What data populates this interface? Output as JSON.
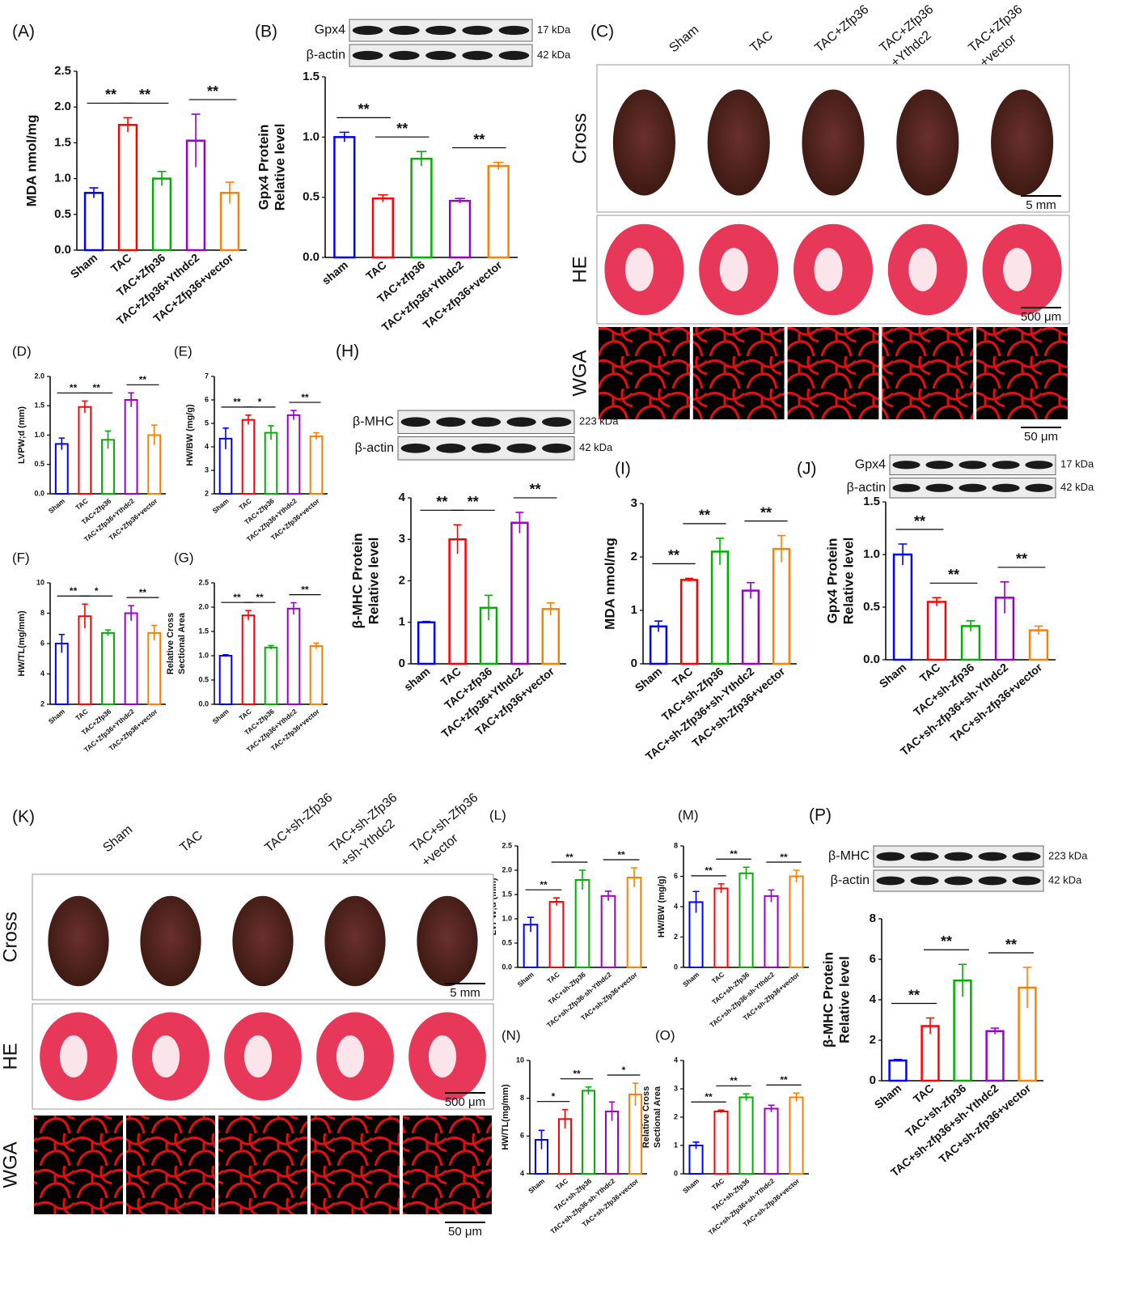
{
  "chart_data": [
    {
      "type": "bar",
      "label": "(A)",
      "ylabel": [
        "MDA nmol/mg"
      ],
      "categories": [
        "Sham",
        "TAC",
        "TAC+Zfp36",
        "TAC+Zfp36+Ythdc2",
        "TAC+Zfp36+vector"
      ],
      "colors": [
        "#0000ff",
        "#ff0000",
        "#00b000",
        "#9900cc",
        "#ff8000"
      ],
      "values": [
        0.8,
        1.75,
        1.0,
        1.53,
        0.8
      ],
      "errors": [
        0.07,
        0.1,
        0.1,
        0.37,
        0.15
      ],
      "ylim": [
        0,
        2.5
      ],
      "yticks": [
        {
          "value": 0,
          "label": "0.0"
        },
        0.5,
        {
          "value": 1,
          "label": "1.0"
        },
        1.5,
        {
          "value": 2,
          "label": "2.0"
        },
        2.5
      ],
      "significance": [
        {
          "pair": [
            0,
            1
          ],
          "text": "**"
        },
        {
          "pair": [
            1,
            2
          ],
          "text": "**"
        },
        {
          "pair": [
            3,
            4
          ],
          "text": "**"
        }
      ]
    },
    {
      "type": "bar",
      "label": "(B)",
      "ylabel": [
        "Gpx4 Protein",
        "Relative level"
      ],
      "categories": [
        "sham",
        "TAC",
        "TAC+zfp36",
        "TAC+zfp36+Ythdc2",
        "TAC+zfp36+vector"
      ],
      "colors": [
        "#0000ff",
        "#ff0000",
        "#00b000",
        "#9900cc",
        "#ff8000"
      ],
      "values": [
        1.0,
        0.49,
        0.82,
        0.47,
        0.76
      ],
      "errors": [
        0.04,
        0.03,
        0.06,
        0.02,
        0.03
      ],
      "ylim": [
        0,
        1.5
      ],
      "yticks": [
        {
          "value": 0,
          "label": "0.0"
        },
        0.5,
        {
          "value": 1,
          "label": "1.0"
        },
        1.5
      ],
      "significance": [
        {
          "pair": [
            0,
            1
          ],
          "text": "**"
        },
        {
          "pair": [
            1,
            2
          ],
          "text": "**"
        },
        {
          "pair": [
            3,
            4
          ],
          "text": "**"
        }
      ],
      "blot": [
        {
          "name": "Gpx4",
          "size": "17 kDa"
        },
        {
          "name": "β-actin",
          "size": "42 kDa"
        }
      ]
    },
    {
      "type": "bar",
      "label": "(D)",
      "ylabel": [
        "LVPW;d (mm)"
      ],
      "categories": [
        "Sham",
        "TAC",
        "TAC+Zfp36",
        "TAC+Zfp36+Ythdc2",
        "TAC+Zfp36+vector"
      ],
      "colors": [
        "#0000ff",
        "#ff0000",
        "#00b000",
        "#9900cc",
        "#ff8000"
      ],
      "values": [
        0.85,
        1.48,
        0.92,
        1.6,
        1.0
      ],
      "errors": [
        0.1,
        0.1,
        0.15,
        0.12,
        0.17
      ],
      "ylim": [
        0,
        2
      ],
      "yticks": [
        {
          "value": 0,
          "label": "0.0"
        },
        0.5,
        {
          "value": 1,
          "label": "1.0"
        },
        1.5,
        {
          "value": 2,
          "label": "2.0"
        }
      ],
      "significance": [
        {
          "pair": [
            0,
            1
          ],
          "text": "**"
        },
        {
          "pair": [
            1,
            2
          ],
          "text": "**"
        },
        {
          "pair": [
            3,
            4
          ],
          "text": "**"
        }
      ]
    },
    {
      "type": "bar",
      "label": "(E)",
      "ylabel": [
        "HW/BW (mg/g)"
      ],
      "categories": [
        "Sham",
        "TAC",
        "TAC+Zfp36",
        "TAC+Zfp36+Ythdc2",
        "TAC+Zfp36+vector"
      ],
      "colors": [
        "#0000ff",
        "#ff0000",
        "#00b000",
        "#9900cc",
        "#ff8000"
      ],
      "values": [
        4.35,
        5.15,
        4.6,
        5.35,
        4.45
      ],
      "errors": [
        0.45,
        0.2,
        0.3,
        0.2,
        0.15
      ],
      "ylim": [
        2,
        7
      ],
      "yticks": [
        2,
        3,
        4,
        5,
        6,
        7
      ],
      "significance": [
        {
          "pair": [
            0,
            1
          ],
          "text": "**"
        },
        {
          "pair": [
            1,
            2
          ],
          "text": "*"
        },
        {
          "pair": [
            3,
            4
          ],
          "text": "**"
        }
      ]
    },
    {
      "type": "bar",
      "label": "(F)",
      "ylabel": [
        "HW/TL(mg/mm)"
      ],
      "categories": [
        "Sham",
        "TAC",
        "TAC+Zfp36",
        "TAC+Zfp36+Ythdc2",
        "TAC+Zfp36+vector"
      ],
      "colors": [
        "#0000ff",
        "#ff0000",
        "#00b000",
        "#9900cc",
        "#ff8000"
      ],
      "values": [
        6.0,
        7.8,
        6.7,
        8.0,
        6.7
      ],
      "errors": [
        0.6,
        0.8,
        0.2,
        0.5,
        0.5
      ],
      "ylim": [
        2,
        10
      ],
      "yticks": [
        2,
        4,
        6,
        8,
        10
      ],
      "significance": [
        {
          "pair": [
            0,
            1
          ],
          "text": "**"
        },
        {
          "pair": [
            1,
            2
          ],
          "text": "*"
        },
        {
          "pair": [
            3,
            4
          ],
          "text": "**"
        }
      ]
    },
    {
      "type": "bar",
      "label": "(G)",
      "ylabel": [
        "Relative Cross",
        "Sectional Area"
      ],
      "categories": [
        "Sham",
        "TAC",
        "TAC+Zfp36",
        "TAC+Zfp36+Ythdc2",
        "TAC+Zfp36+vector"
      ],
      "colors": [
        "#0000ff",
        "#ff0000",
        "#00b000",
        "#9900cc",
        "#ff8000"
      ],
      "values": [
        1.0,
        1.83,
        1.17,
        1.97,
        1.2
      ],
      "errors": [
        0.02,
        0.1,
        0.04,
        0.12,
        0.06
      ],
      "ylim": [
        0,
        2.5
      ],
      "yticks": [
        {
          "value": 0,
          "label": "0.0"
        },
        0.5,
        {
          "value": 1,
          "label": "1.0"
        },
        1.5,
        {
          "value": 2,
          "label": "2.0"
        },
        2.5
      ],
      "significance": [
        {
          "pair": [
            0,
            1
          ],
          "text": "**"
        },
        {
          "pair": [
            1,
            2
          ],
          "text": "**"
        },
        {
          "pair": [
            3,
            4
          ],
          "text": "**"
        }
      ]
    },
    {
      "type": "bar",
      "label": "(H)",
      "ylabel": [
        "β-MHC Protein",
        "Relative level"
      ],
      "categories": [
        "sham",
        "TAC",
        "TAC+zfp36",
        "TAC+zfp36+Ythdc2",
        "TAC+zfp36+vector"
      ],
      "colors": [
        "#0000ff",
        "#ff0000",
        "#00b000",
        "#9900cc",
        "#ff8000"
      ],
      "values": [
        1.0,
        3.0,
        1.35,
        3.4,
        1.32
      ],
      "errors": [
        0.02,
        0.35,
        0.3,
        0.25,
        0.15
      ],
      "ylim": [
        0,
        4
      ],
      "yticks": [
        0,
        1,
        2,
        3,
        4
      ],
      "significance": [
        {
          "pair": [
            0,
            1
          ],
          "text": "**"
        },
        {
          "pair": [
            1,
            2
          ],
          "text": "**"
        },
        {
          "pair": [
            3,
            4
          ],
          "text": "**"
        }
      ],
      "blot": [
        {
          "name": "β-MHC",
          "size": "223 kDa"
        },
        {
          "name": "β-actin",
          "size": "42 kDa"
        }
      ]
    },
    {
      "type": "bar",
      "label": "(I)",
      "ylabel": [
        "MDA nmol/mg"
      ],
      "categories": [
        "Sham",
        "TAC",
        "TAC+sh-Zfp36",
        "TAC+sh-Zfp36+sh-Ythdc2",
        "TAC+sh-Zfp36+vector"
      ],
      "colors": [
        "#0000ff",
        "#ff0000",
        "#00b000",
        "#9900cc",
        "#ff8000"
      ],
      "values": [
        0.7,
        1.57,
        2.1,
        1.37,
        2.15
      ],
      "errors": [
        0.1,
        0.03,
        0.25,
        0.15,
        0.25
      ],
      "ylim": [
        0,
        3
      ],
      "yticks": [
        0,
        1,
        2,
        3
      ],
      "significance": [
        {
          "pair": [
            0,
            1
          ],
          "text": "**"
        },
        {
          "pair": [
            1,
            2
          ],
          "text": "**"
        },
        {
          "pair": [
            3,
            4
          ],
          "text": "**"
        }
      ]
    },
    {
      "type": "bar",
      "label": "(J)",
      "ylabel": [
        "Gpx4 Protein",
        "Relative level"
      ],
      "categories": [
        "Sham",
        "TAC",
        "TAC+sh-zfp36",
        "TAC+sh-zfp36+sh-Ythdc2",
        "TAC+sh-zfp36+vector"
      ],
      "colors": [
        "#0000ff",
        "#ff0000",
        "#00b000",
        "#9900cc",
        "#ff8000"
      ],
      "values": [
        1.0,
        0.55,
        0.32,
        0.59,
        0.28
      ],
      "errors": [
        0.1,
        0.04,
        0.05,
        0.15,
        0.04
      ],
      "ylim": [
        0,
        1.5
      ],
      "yticks": [
        {
          "value": 0,
          "label": "0.0"
        },
        0.5,
        {
          "value": 1,
          "label": "1.0"
        },
        1.5
      ],
      "significance": [
        {
          "pair": [
            0,
            1
          ],
          "text": "**"
        },
        {
          "pair": [
            1,
            2
          ],
          "text": "**"
        },
        {
          "pair": [
            3,
            4
          ],
          "text": "**"
        }
      ],
      "blot": [
        {
          "name": "Gpx4",
          "size": "17 kDa"
        },
        {
          "name": "β-actin",
          "size": "42 kDa"
        }
      ]
    },
    {
      "type": "bar",
      "label": "(L)",
      "ylabel": [
        "LVPW;d (mm)"
      ],
      "categories": [
        "Sham",
        "TAC",
        "TAC+sh-Zfp36",
        "TAC+sh-Zfp36-sh-Ythdc2",
        "TAC+sh-Zfp36+vector"
      ],
      "colors": [
        "#0000ff",
        "#ff0000",
        "#00b000",
        "#9900cc",
        "#ff8000"
      ],
      "values": [
        0.88,
        1.35,
        1.8,
        1.47,
        1.85
      ],
      "errors": [
        0.15,
        0.08,
        0.2,
        0.1,
        0.2
      ],
      "ylim": [
        0,
        2.5
      ],
      "yticks": [
        {
          "value": 0,
          "label": "0.0"
        },
        0.5,
        {
          "value": 1,
          "label": "1.0"
        },
        1.5,
        {
          "value": 2,
          "label": "2.0"
        },
        2.5
      ],
      "significance": [
        {
          "pair": [
            0,
            1
          ],
          "text": "**"
        },
        {
          "pair": [
            1,
            2
          ],
          "text": "**"
        },
        {
          "pair": [
            3,
            4
          ],
          "text": "**"
        }
      ]
    },
    {
      "type": "bar",
      "label": "(M)",
      "ylabel": [
        "HW/BW (mg/g)"
      ],
      "categories": [
        "Sham",
        "TAC",
        "TAC+sh-Zfp36",
        "TAC+sh-Zfp36-sh-Ythdc2",
        "TAC+sh-Zfp36+vector"
      ],
      "colors": [
        "#0000ff",
        "#ff0000",
        "#00b000",
        "#9900cc",
        "#ff8000"
      ],
      "values": [
        4.3,
        5.2,
        6.2,
        4.7,
        6.0
      ],
      "errors": [
        0.7,
        0.3,
        0.4,
        0.4,
        0.4
      ],
      "ylim": [
        0,
        8
      ],
      "yticks": [
        0,
        2,
        4,
        6,
        8
      ],
      "significance": [
        {
          "pair": [
            0,
            1
          ],
          "text": "**"
        },
        {
          "pair": [
            1,
            2
          ],
          "text": "**"
        },
        {
          "pair": [
            3,
            4
          ],
          "text": "**"
        }
      ]
    },
    {
      "type": "bar",
      "label": "(N)",
      "ylabel": [
        "HW/TL(mg/mm)"
      ],
      "categories": [
        "Sham",
        "TAC",
        "TAC+sh-Zfp36",
        "TAC+sh-Zfp36-sh-Ythdc2",
        "TAC+sh-Zfp36+vector"
      ],
      "colors": [
        "#0000ff",
        "#ff0000",
        "#00b000",
        "#9900cc",
        "#ff8000"
      ],
      "values": [
        5.8,
        6.9,
        8.4,
        7.3,
        8.2
      ],
      "errors": [
        0.5,
        0.5,
        0.2,
        0.5,
        0.6
      ],
      "ylim": [
        4,
        10
      ],
      "yticks": [
        4,
        6,
        8,
        10
      ],
      "significance": [
        {
          "pair": [
            0,
            1
          ],
          "text": "*"
        },
        {
          "pair": [
            1,
            2
          ],
          "text": "**"
        },
        {
          "pair": [
            3,
            4
          ],
          "text": "*"
        }
      ]
    },
    {
      "type": "bar",
      "label": "(O)",
      "ylabel": [
        "Relative Cross",
        "Sectional Area"
      ],
      "categories": [
        "Sham",
        "TAC",
        "TAC+sh-Zfp36",
        "TAC+sh-Zfp36+sh-Ythdc2",
        "TAC+sh-Zfp36+vector"
      ],
      "colors": [
        "#0000ff",
        "#ff0000",
        "#00b000",
        "#9900cc",
        "#ff8000"
      ],
      "values": [
        1.0,
        2.2,
        2.7,
        2.3,
        2.7
      ],
      "errors": [
        0.12,
        0.05,
        0.12,
        0.12,
        0.15
      ],
      "ylim": [
        0,
        4
      ],
      "yticks": [
        0,
        1,
        2,
        3,
        4
      ],
      "significance": [
        {
          "pair": [
            0,
            1
          ],
          "text": "**"
        },
        {
          "pair": [
            1,
            2
          ],
          "text": "**"
        },
        {
          "pair": [
            3,
            4
          ],
          "text": "**"
        }
      ]
    },
    {
      "type": "bar",
      "label": "(P)",
      "ylabel": [
        "β-MHC Protein",
        "Relative level"
      ],
      "categories": [
        "Sham",
        "TAC",
        "TAC+sh-zfp36",
        "TAC+sh-zfp36+sh-Ythdc2",
        "TAC+sh-zfp36+vector"
      ],
      "colors": [
        "#0000ff",
        "#ff0000",
        "#00b000",
        "#9900cc",
        "#ff8000"
      ],
      "values": [
        1.0,
        2.7,
        4.95,
        2.45,
        4.6
      ],
      "errors": [
        0.05,
        0.4,
        0.8,
        0.15,
        1.0
      ],
      "ylim": [
        0,
        8
      ],
      "yticks": [
        0,
        2,
        4,
        6,
        8
      ],
      "significance": [
        {
          "pair": [
            0,
            1
          ],
          "text": "**"
        },
        {
          "pair": [
            1,
            2
          ],
          "text": "**"
        },
        {
          "pair": [
            3,
            4
          ],
          "text": "**"
        }
      ],
      "blot": [
        {
          "name": "β-MHC",
          "size": "223 kDa"
        },
        {
          "name": "β-actin",
          "size": "42 kDa"
        }
      ]
    }
  ],
  "image_panels": [
    {
      "label": "(C)",
      "columns": [
        [
          "Sham"
        ],
        [
          "TAC"
        ],
        [
          "TAC+Zfp36"
        ],
        [
          "TAC+Zfp36",
          "+Ythdc2"
        ],
        [
          "TAC+Zfp36",
          "+vector"
        ]
      ],
      "rows": [
        "Cross",
        "HE",
        "WGA"
      ],
      "scale_bars": [
        "5 mm",
        "500 μm",
        "50 μm"
      ]
    },
    {
      "label": "(K)",
      "columns": [
        [
          "Sham"
        ],
        [
          "TAC"
        ],
        [
          "TAC+sh-Zfp36"
        ],
        [
          "TAC+sh-Zfp36",
          "+sh-Ythdc2"
        ],
        [
          "TAC+sh-Zfp36",
          "+vector"
        ]
      ],
      "rows": [
        "Cross",
        "HE",
        "WGA"
      ],
      "scale_bars": [
        "5 mm",
        "500 μm",
        "50 μm"
      ]
    }
  ]
}
